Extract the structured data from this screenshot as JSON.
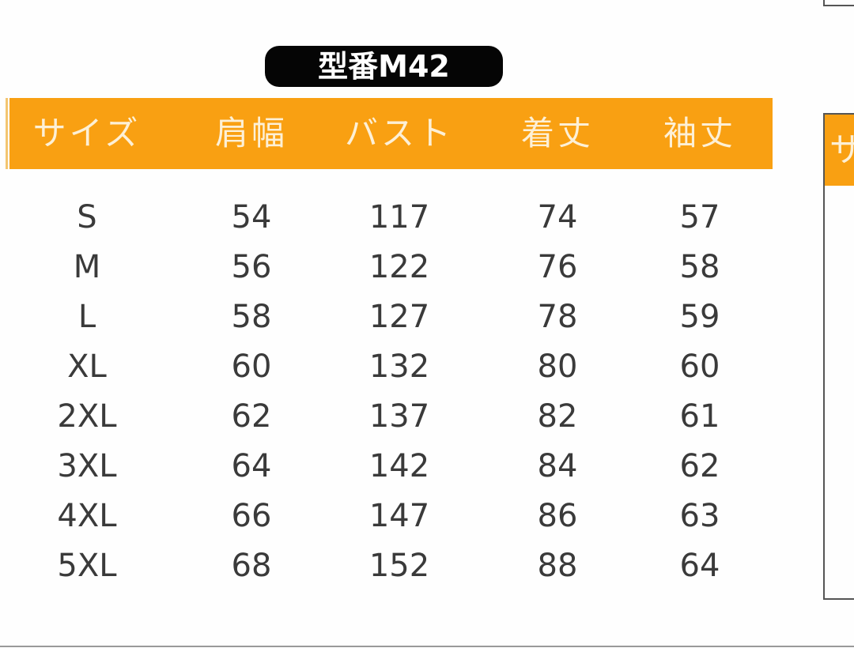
{
  "title": "型番M42",
  "colors": {
    "header": "#f9a012",
    "title_bg": "#050505",
    "text": "#3a3a3a"
  },
  "table": {
    "headers": [
      "サイズ",
      "肩幅",
      "バスト",
      "着丈",
      "袖丈"
    ],
    "rows": [
      [
        "S",
        "54",
        "117",
        "74",
        "57"
      ],
      [
        "M",
        "56",
        "122",
        "76",
        "58"
      ],
      [
        "L",
        "58",
        "127",
        "78",
        "59"
      ],
      [
        "XL",
        "60",
        "132",
        "80",
        "60"
      ],
      [
        "2XL",
        "62",
        "137",
        "82",
        "61"
      ],
      [
        "3XL",
        "64",
        "142",
        "84",
        "62"
      ],
      [
        "4XL",
        "66",
        "147",
        "86",
        "63"
      ],
      [
        "5XL",
        "68",
        "152",
        "88",
        "64"
      ]
    ]
  },
  "adjacent_table": {
    "header_partial": "サ"
  }
}
